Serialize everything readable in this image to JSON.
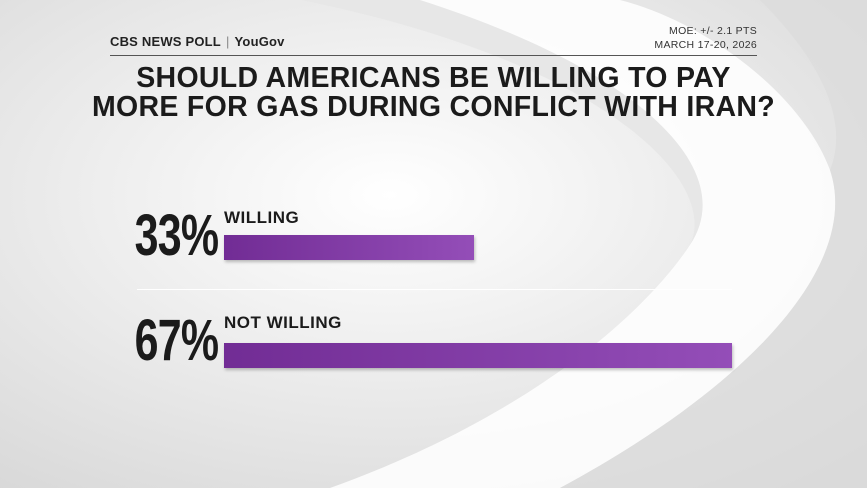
{
  "header": {
    "brand": "CBS NEWS POLL",
    "partner": "YouGov",
    "moe": "MOE: +/- 2.1 PTS",
    "date": "MARCH 17-20, 2026"
  },
  "chart_data": {
    "type": "bar",
    "orientation": "horizontal",
    "title": "SHOULD AMERICANS BE WILLING TO PAY MORE FOR GAS DURING CONFLICT WITH IRAN?",
    "categories": [
      "WILLING",
      "NOT WILLING"
    ],
    "values": [
      33,
      67
    ],
    "value_labels": [
      "33%",
      "67%"
    ],
    "color": "#8e44b4"
  }
}
